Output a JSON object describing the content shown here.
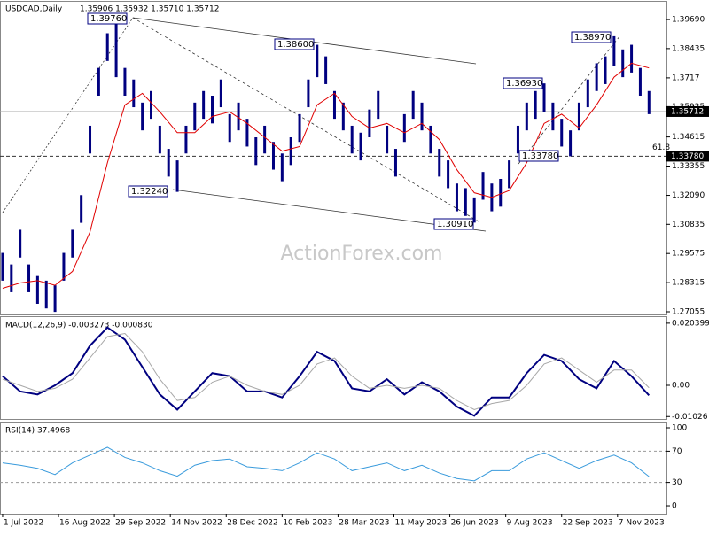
{
  "chart_data": [
    {
      "type": "ohlc",
      "title": "USDCAD,Daily",
      "subtitle": "1.35906 1.35932 1.35710 1.35712",
      "watermark": "ActionForex.com",
      "color": "#000080",
      "x": [
        0,
        5,
        10,
        15,
        20,
        25,
        30,
        35,
        40,
        45,
        50,
        55,
        60,
        65,
        70,
        75,
        80,
        85,
        90,
        95,
        100,
        105,
        110,
        115,
        120,
        125,
        130,
        135,
        140,
        145,
        150,
        155,
        160,
        165,
        170,
        175,
        180,
        185,
        190,
        195,
        200,
        205,
        210,
        215,
        220,
        225,
        230,
        235,
        240,
        245,
        250,
        255,
        260,
        265,
        270,
        275,
        280,
        285,
        290,
        295,
        300,
        305,
        310,
        315,
        320,
        325,
        330,
        335,
        340,
        345,
        350,
        355,
        360,
        365,
        370
      ],
      "high": [
        1.296,
        1.291,
        1.306,
        1.291,
        1.286,
        1.284,
        1.282,
        1.296,
        1.306,
        1.321,
        1.351,
        1.376,
        1.391,
        1.3976,
        1.376,
        1.371,
        1.361,
        1.366,
        1.351,
        1.341,
        1.336,
        1.351,
        1.361,
        1.366,
        1.364,
        1.371,
        1.356,
        1.361,
        1.354,
        1.346,
        1.351,
        1.344,
        1.339,
        1.346,
        1.356,
        1.371,
        1.386,
        1.381,
        1.366,
        1.361,
        1.351,
        1.348,
        1.358,
        1.366,
        1.351,
        1.341,
        1.356,
        1.366,
        1.361,
        1.351,
        1.341,
        1.336,
        1.326,
        1.324,
        1.32,
        1.331,
        1.326,
        1.328,
        1.336,
        1.351,
        1.361,
        1.366,
        1.3693,
        1.361,
        1.354,
        1.349,
        1.361,
        1.371,
        1.378,
        1.381,
        1.3897,
        1.384,
        1.386,
        1.376,
        1.366
      ],
      "low": [
        1.284,
        1.279,
        1.294,
        1.279,
        1.274,
        1.272,
        1.2705,
        1.284,
        1.294,
        1.309,
        1.339,
        1.364,
        1.379,
        1.372,
        1.364,
        1.359,
        1.349,
        1.354,
        1.339,
        1.329,
        1.3224,
        1.339,
        1.349,
        1.354,
        1.352,
        1.359,
        1.344,
        1.349,
        1.342,
        1.334,
        1.339,
        1.332,
        1.327,
        1.334,
        1.344,
        1.359,
        1.372,
        1.369,
        1.354,
        1.349,
        1.339,
        1.336,
        1.346,
        1.354,
        1.339,
        1.329,
        1.344,
        1.354,
        1.349,
        1.339,
        1.329,
        1.324,
        1.314,
        1.312,
        1.3091,
        1.319,
        1.314,
        1.316,
        1.324,
        1.339,
        1.349,
        1.354,
        1.357,
        1.349,
        1.342,
        1.3378,
        1.349,
        1.359,
        1.366,
        1.369,
        1.377,
        1.372,
        1.374,
        1.364,
        1.356
      ],
      "ma": {
        "color": "#e00000",
        "x": [
          0,
          10,
          20,
          30,
          40,
          50,
          60,
          70,
          80,
          90,
          100,
          110,
          120,
          130,
          140,
          150,
          160,
          170,
          180,
          190,
          200,
          210,
          220,
          230,
          240,
          250,
          260,
          270,
          280,
          290,
          300,
          310,
          320,
          330,
          340,
          350,
          360,
          370
        ],
        "values": [
          1.2807,
          1.283,
          1.284,
          1.282,
          1.288,
          1.305,
          1.335,
          1.36,
          1.365,
          1.357,
          1.348,
          1.348,
          1.355,
          1.357,
          1.352,
          1.346,
          1.34,
          1.342,
          1.36,
          1.365,
          1.355,
          1.35,
          1.352,
          1.348,
          1.352,
          1.345,
          1.332,
          1.322,
          1.32,
          1.323,
          1.335,
          1.352,
          1.356,
          1.35,
          1.36,
          1.372,
          1.378,
          1.376
        ]
      },
      "annotations": [
        "1.39760",
        "1.38600",
        "1.32240",
        "1.30910",
        "1.36930",
        "1.33780",
        "1.38970"
      ],
      "current_price": {
        "value": 1.35712,
        "label": "1.35712"
      },
      "fib_level": {
        "value": 1.3378,
        "label": "61.8",
        "axis_label": "1.33780"
      },
      "xlim": [
        -1.5,
        380
      ],
      "xticks": [
        {
          "value": 0,
          "label": "1 Jul 2022"
        },
        {
          "value": 32,
          "label": "16 Aug 2022"
        },
        {
          "value": 64,
          "label": "29 Sep 2022"
        },
        {
          "value": 96,
          "label": "14 Nov 2022"
        },
        {
          "value": 128,
          "label": "28 Dec 2022"
        },
        {
          "value": 160,
          "label": "10 Feb 2023"
        },
        {
          "value": 192,
          "label": "28 Mar 2023"
        },
        {
          "value": 224,
          "label": "11 May 2023"
        },
        {
          "value": 256,
          "label": "26 Jun 2023"
        },
        {
          "value": 288,
          "label": "9 Aug 2023"
        },
        {
          "value": 320,
          "label": "22 Sep 2023"
        },
        {
          "value": 352,
          "label": "7 Nov 2023"
        }
      ],
      "ylim": [
        1.2694,
        1.4046
      ],
      "yticks": [
        {
          "value": 1.3969,
          "label": "1.39690"
        },
        1.38435,
        1.3717,
        {
          "value": 1.35925,
          "label": "1.35925"
        },
        1.34615,
        1.33355,
        {
          "value": 1.3209,
          "label": "1.32090"
        },
        1.30835,
        1.29575,
        1.28315,
        1.27055
      ]
    },
    {
      "type": "line",
      "title": "MACD(12,26,9) -0.003273 -0.000830",
      "x": [
        0,
        10,
        20,
        30,
        40,
        50,
        60,
        70,
        80,
        90,
        100,
        110,
        120,
        130,
        140,
        150,
        160,
        170,
        180,
        190,
        200,
        210,
        220,
        230,
        240,
        250,
        260,
        270,
        280,
        290,
        300,
        310,
        320,
        330,
        340,
        350,
        360,
        370
      ],
      "series": [
        {
          "color": "#000080",
          "values": [
            0.003,
            -0.002,
            -0.003,
            0,
            0.004,
            0.013,
            0.019,
            0.015,
            0.006,
            -0.003,
            -0.008,
            -0.002,
            0.004,
            0.003,
            -0.002,
            -0.002,
            -0.004,
            0.003,
            0.011,
            0.008,
            -0.001,
            -0.002,
            0.002,
            -0.003,
            0.001,
            -0.002,
            -0.007,
            -0.01,
            -0.004,
            -0.004,
            0.004,
            0.01,
            0.008,
            0.002,
            -0.001,
            0.008,
            0.003,
            -0.0033
          ]
        },
        {
          "color": "#a8a8a8",
          "values": [
            0.002,
            0,
            -0.002,
            -0.001,
            0.002,
            0.009,
            0.016,
            0.017,
            0.011,
            0.002,
            -0.005,
            -0.004,
            0.001,
            0.003,
            0,
            -0.002,
            -0.003,
            0,
            0.007,
            0.009,
            0.003,
            -0.001,
            0,
            -0.001,
            0,
            -0.001,
            -0.005,
            -0.008,
            -0.006,
            -0.005,
            0,
            0.007,
            0.009,
            0.005,
            0.001,
            0.005,
            0.005,
            -0.0008
          ]
        }
      ],
      "xlim": [
        -1.5,
        380
      ],
      "ylim": [
        -0.01106,
        0.0224
      ],
      "yticks": [
        0.020399,
        {
          "value": 0,
          "label": "0.00"
        },
        -0.01026
      ]
    },
    {
      "type": "line",
      "title": "RSI(14) 37.4968",
      "x": [
        0,
        10,
        20,
        30,
        40,
        50,
        60,
        70,
        80,
        90,
        100,
        110,
        120,
        130,
        140,
        150,
        160,
        170,
        180,
        190,
        200,
        210,
        220,
        230,
        240,
        250,
        260,
        270,
        280,
        290,
        300,
        310,
        320,
        330,
        340,
        350,
        360,
        370
      ],
      "series": [
        {
          "color": "#3a9bdc",
          "values": [
            55,
            52,
            48,
            40,
            55,
            65,
            75,
            62,
            55,
            45,
            38,
            52,
            58,
            60,
            50,
            48,
            45,
            55,
            68,
            60,
            45,
            50,
            55,
            45,
            52,
            42,
            35,
            32,
            45,
            45,
            60,
            68,
            58,
            48,
            58,
            65,
            55,
            37.5
          ]
        }
      ],
      "levels": [
        70,
        30
      ],
      "xlim": [
        -1.5,
        380
      ],
      "ylim": [
        -10.2,
        106.8
      ],
      "yticks": [
        100,
        70,
        30,
        0
      ]
    }
  ]
}
